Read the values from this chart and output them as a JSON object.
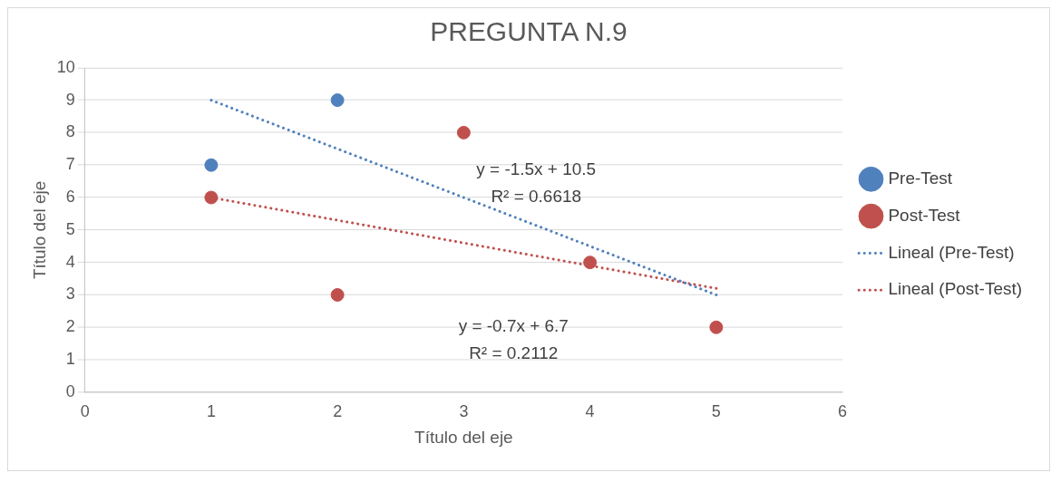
{
  "chart_data": {
    "type": "scatter",
    "title": "PREGUNTA N.9",
    "xlabel": "Título del eje",
    "ylabel": "Título del eje",
    "xlim": [
      0,
      6
    ],
    "xticks": [
      0,
      1,
      2,
      3,
      4,
      5,
      6
    ],
    "ylim": [
      0,
      10
    ],
    "yticks": [
      0,
      1,
      2,
      3,
      4,
      5,
      6,
      7,
      8,
      9,
      10
    ],
    "grid": "y",
    "legend": "right",
    "series": [
      {
        "name": "Pre-Test",
        "color": "#4f81bd",
        "marker": "circle",
        "x": [
          1,
          2
        ],
        "values": [
          7,
          9
        ]
      },
      {
        "name": "Post-Test",
        "color": "#c0504d",
        "marker": "circle",
        "x": [
          1,
          2,
          3,
          4,
          5
        ],
        "values": [
          6,
          3,
          8,
          4,
          2
        ]
      },
      {
        "name": "Lineal (Pre-Test)",
        "color": "#4f81bd",
        "type": "line",
        "marker": "none",
        "line_style": "dotted",
        "x": [
          1,
          5
        ],
        "values": [
          9,
          3
        ]
      },
      {
        "name": "Lineal (Post-Test)",
        "color": "#c0504d",
        "type": "line",
        "marker": "none",
        "line_style": "dotted",
        "x": [
          1,
          5
        ],
        "values": [
          6,
          3.2
        ]
      }
    ],
    "annotations": [
      "y = -1.5x + 10.5",
      "R² = 0.6618",
      "y = -0.7x + 6.7",
      "R² = 0.2112"
    ]
  }
}
